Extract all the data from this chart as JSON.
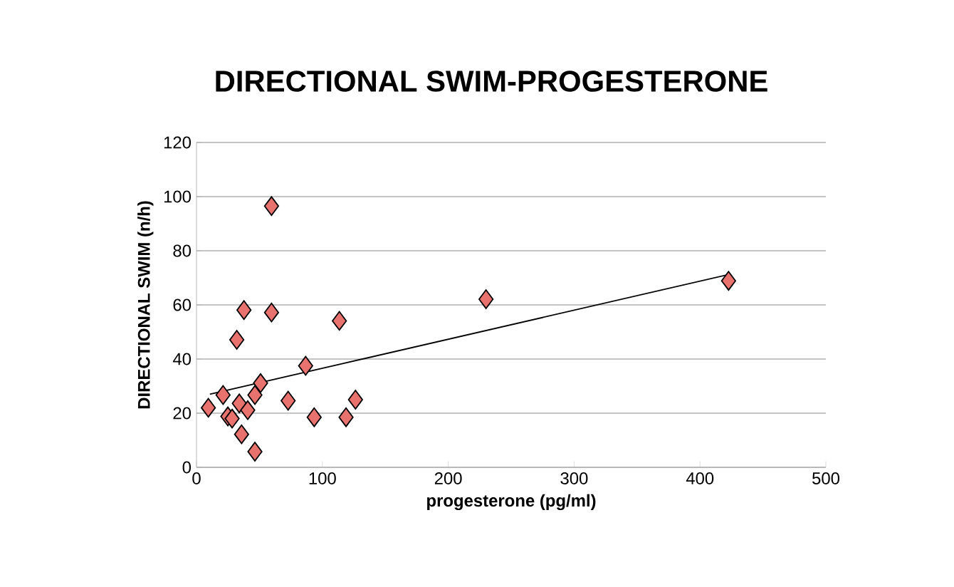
{
  "chart_data": {
    "type": "scatter",
    "title": "DIRECTIONAL SWIM-PROGESTERONE",
    "xlabel": "progesterone (pg/ml)",
    "ylabel": "DIRECTIONAL SWIM (n/h)",
    "xlim": [
      0,
      500
    ],
    "xticks": [
      0,
      100,
      200,
      300,
      400,
      500
    ],
    "ylim": [
      0,
      120
    ],
    "yticks": [
      0,
      20,
      40,
      60,
      80,
      100,
      120
    ],
    "grid": "y",
    "series": [
      {
        "marker": "diamond",
        "color": "#e8736e",
        "x": [
          59.6,
          37.7,
          59.6,
          32,
          113.5,
          230,
          422.7,
          86.7,
          50.9,
          21.1,
          46.4,
          72.8,
          126.3,
          9.4,
          34,
          40.7,
          24.9,
          28.3,
          93.5,
          118.8,
          35.8,
          46.4
        ],
        "values": [
          96.5,
          58.1,
          57.2,
          47.1,
          54.1,
          62.1,
          68.9,
          37.5,
          31.1,
          26.7,
          26.7,
          24.6,
          25,
          22,
          23.6,
          21.1,
          18.8,
          18,
          18.5,
          18.5,
          12.2,
          5.8
        ]
      },
      {
        "type": "line",
        "marker": "none",
        "line_style": "solid",
        "color": "#000000",
        "x": [
          10.6,
          422.7
        ],
        "values": [
          27,
          71.2
        ]
      }
    ]
  }
}
